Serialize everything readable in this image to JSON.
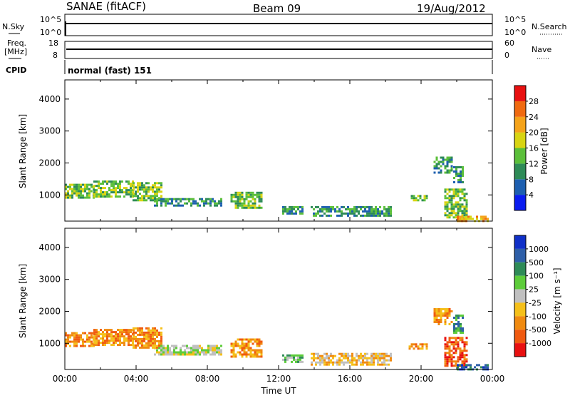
{
  "header": {
    "station": "SANAE (fitACF)",
    "beam": "Beam 09",
    "date": "19/Aug/2012"
  },
  "strip_panels": {
    "nsky": {
      "label": "N.Sky",
      "right_label": "N.Search",
      "left_ticks": [
        "10^5",
        "10^0"
      ],
      "right_ticks": [
        "10^5",
        "10^0"
      ]
    },
    "freq": {
      "label_top": "Freq.",
      "label_bottom": "[MHz]",
      "right_label": "Nave",
      "left_ticks": [
        "18",
        "8"
      ],
      "right_ticks": [
        "60",
        "0"
      ]
    },
    "cpid": {
      "label": "CPID",
      "text": "normal (fast) 151"
    }
  },
  "chart_data": [
    {
      "type": "heatmap",
      "name": "power-panel",
      "ylabel": "Slant Range [km]",
      "ylim": [
        180,
        4600
      ],
      "yticks": [
        1000,
        2000,
        3000,
        4000
      ],
      "xlim": [
        0,
        24
      ],
      "colorbar": {
        "label": "Power [dB]",
        "ticks": [
          "4",
          "8",
          "12",
          "16",
          "20",
          "24",
          "28"
        ],
        "colors": [
          "#0a1cf0",
          "#1d5fb0",
          "#2e8b57",
          "#5bbf3a",
          "#d8d412",
          "#f5a31a",
          "#f06a10",
          "#e81010"
        ]
      },
      "regions": [
        {
          "t0": 0.0,
          "t1": 1.6,
          "r0": 900,
          "r1": 1350,
          "level": 3
        },
        {
          "t0": 1.6,
          "t1": 3.8,
          "r0": 950,
          "r1": 1450,
          "level": 3
        },
        {
          "t0": 3.8,
          "t1": 5.4,
          "r0": 850,
          "r1": 1400,
          "level": 3
        },
        {
          "t0": 5.0,
          "t1": 8.8,
          "r0": 650,
          "r1": 900,
          "level": 2
        },
        {
          "t0": 9.3,
          "t1": 11.0,
          "r0": 600,
          "r1": 1100,
          "level": 3
        },
        {
          "t0": 12.2,
          "t1": 13.3,
          "r0": 400,
          "r1": 650,
          "level": 2
        },
        {
          "t0": 13.8,
          "t1": 18.3,
          "r0": 350,
          "r1": 650,
          "level": 2
        },
        {
          "t0": 19.3,
          "t1": 20.3,
          "r0": 800,
          "r1": 1000,
          "level": 3
        },
        {
          "t0": 20.7,
          "t1": 21.7,
          "r0": 1700,
          "r1": 2200,
          "level": 2
        },
        {
          "t0": 21.8,
          "t1": 22.3,
          "r0": 1400,
          "r1": 1900,
          "level": 2
        },
        {
          "t0": 21.3,
          "t1": 22.6,
          "r0": 300,
          "r1": 1200,
          "level": 3
        },
        {
          "t0": 22.0,
          "t1": 23.8,
          "r0": 180,
          "r1": 350,
          "level": 5
        }
      ]
    },
    {
      "type": "heatmap",
      "name": "velocity-panel",
      "ylabel": "Slant Range [km]",
      "ylim": [
        180,
        4600
      ],
      "yticks": [
        1000,
        2000,
        3000,
        4000
      ],
      "xlim": [
        0,
        24
      ],
      "xticks": [
        "00:00",
        "04:00",
        "08:00",
        "12:00",
        "16:00",
        "20:00",
        "00:00"
      ],
      "xlabel": "Time UT",
      "colorbar": {
        "label": "Velocity [m s⁻¹]",
        "ticks": [
          "1000",
          "500",
          "100",
          "25",
          "-25",
          "-100",
          "-500",
          "-1000"
        ],
        "colors": [
          "#1030c8",
          "#2e5fa8",
          "#2e8b57",
          "#5dcc3a",
          "#c0c0c0",
          "#f5c01a",
          "#f08a10",
          "#f05a10",
          "#e81010"
        ]
      },
      "regions": [
        {
          "t0": 0.0,
          "t1": 1.6,
          "r0": 900,
          "r1": 1350,
          "level": 6
        },
        {
          "t0": 1.6,
          "t1": 3.8,
          "r0": 950,
          "r1": 1450,
          "level": 6
        },
        {
          "t0": 3.8,
          "t1": 5.4,
          "r0": 850,
          "r1": 1500,
          "level": 6
        },
        {
          "t0": 5.0,
          "t1": 8.8,
          "r0": 650,
          "r1": 950,
          "level": 4
        },
        {
          "t0": 9.3,
          "t1": 11.0,
          "r0": 600,
          "r1": 1150,
          "level": 6
        },
        {
          "t0": 12.2,
          "t1": 13.3,
          "r0": 400,
          "r1": 650,
          "level": 3
        },
        {
          "t0": 13.8,
          "t1": 18.3,
          "r0": 350,
          "r1": 700,
          "level": 5
        },
        {
          "t0": 19.3,
          "t1": 20.3,
          "r0": 800,
          "r1": 1000,
          "level": 6
        },
        {
          "t0": 20.7,
          "t1": 21.7,
          "r0": 1600,
          "r1": 2100,
          "level": 6
        },
        {
          "t0": 21.8,
          "t1": 22.3,
          "r0": 1300,
          "r1": 1900,
          "level": 2
        },
        {
          "t0": 21.3,
          "t1": 22.6,
          "r0": 300,
          "r1": 1200,
          "level": 7
        },
        {
          "t0": 22.0,
          "t1": 23.8,
          "r0": 180,
          "r1": 350,
          "level": 1
        }
      ]
    }
  ]
}
